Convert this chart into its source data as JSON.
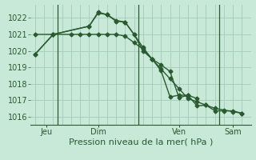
{
  "bg_color": "#c8e8d8",
  "grid_color": "#a8cfc0",
  "line_color": "#2a5a30",
  "xlabel": "Pression niveau de la mer( hPa )",
  "ylim": [
    1015.5,
    1022.8
  ],
  "yticks": [
    1016,
    1017,
    1018,
    1019,
    1020,
    1021,
    1022
  ],
  "series1_x": [
    0,
    2,
    6,
    7,
    8,
    9,
    10,
    11,
    12,
    13,
    14,
    15,
    16,
    17,
    18
  ],
  "series1_y": [
    1019.8,
    1021.0,
    1021.5,
    1022.3,
    1022.2,
    1021.8,
    1021.75,
    1021.0,
    1020.0,
    1019.5,
    1018.8,
    1017.2,
    1017.3,
    1017.3,
    1017.1
  ],
  "series2_x": [
    0,
    2,
    6,
    7,
    8,
    9,
    10,
    11,
    12,
    13,
    14,
    15,
    16,
    17,
    18,
    19,
    20,
    21,
    22,
    23
  ],
  "series2_y": [
    1019.8,
    1021.0,
    1021.5,
    1022.35,
    1022.2,
    1021.85,
    1021.75,
    1021.0,
    1020.2,
    1019.5,
    1019.15,
    1018.75,
    1017.15,
    1017.3,
    1016.65,
    1016.7,
    1016.35,
    1016.35,
    1016.35,
    1016.2
  ],
  "series3_x": [
    0,
    2,
    4,
    5,
    6,
    7,
    8,
    9,
    10,
    11,
    12,
    13,
    14,
    15,
    16,
    17,
    18,
    19,
    20,
    21,
    22,
    23
  ],
  "series3_y": [
    1021.0,
    1021.0,
    1021.0,
    1021.0,
    1021.0,
    1021.0,
    1021.0,
    1021.0,
    1020.9,
    1020.5,
    1020.1,
    1019.5,
    1018.9,
    1018.3,
    1017.7,
    1017.1,
    1016.9,
    1016.7,
    1016.5,
    1016.4,
    1016.3,
    1016.2
  ],
  "vline_positions": [
    2.5,
    11.5,
    20.5
  ],
  "xtick_positions": [
    1.25,
    7.0,
    16.0,
    22.0
  ],
  "xtick_labels": [
    "Jeu",
    "Dim",
    "Ven",
    "Sam"
  ],
  "xlim": [
    -0.5,
    24
  ],
  "xlabel_fontsize": 8,
  "tick_fontsize": 7
}
